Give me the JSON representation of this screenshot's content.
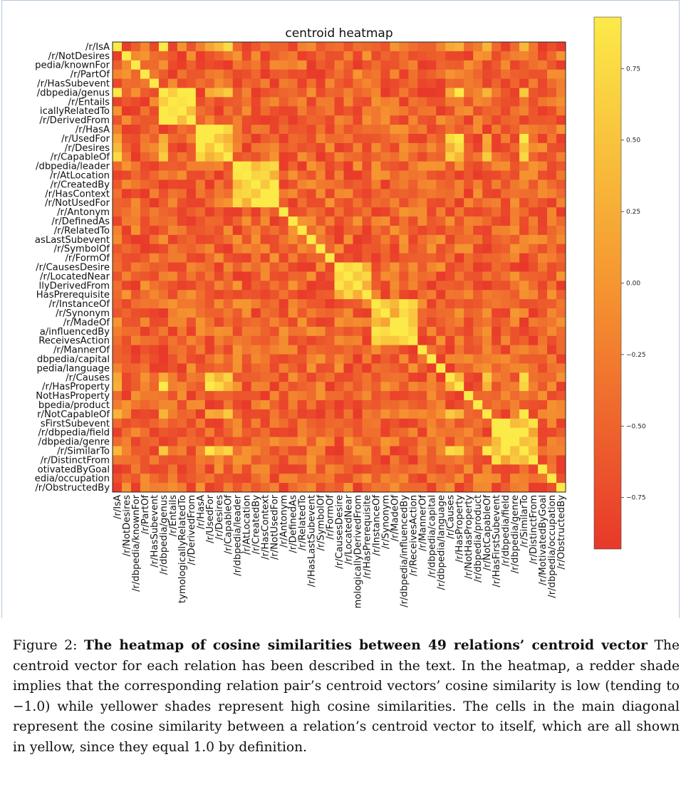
{
  "chart_data": {
    "type": "heatmap",
    "title": "centroid heatmap",
    "labels": [
      "/r/IsA",
      "/r/NotDesires",
      "/r/dbpedia/knownFor",
      "/r/PartOf",
      "/r/HasSubevent",
      "/r/dbpedia/genus",
      "/r/Entails",
      "/r/EtymologicallyRelatedTo",
      "/r/DerivedFrom",
      "/r/HasA",
      "/r/UsedFor",
      "/r/Desires",
      "/r/CapableOf",
      "/r/dbpedia/leader",
      "/r/AtLocation",
      "/r/CreatedBy",
      "/r/HasContext",
      "/r/NotUsedFor",
      "/r/Antonym",
      "/r/DefinedAs",
      "/r/RelatedTo",
      "/r/HasLastSubevent",
      "/r/SymbolOf",
      "/r/FormOf",
      "/r/CausesDesire",
      "/r/LocatedNear",
      "/r/EtymologicallyDerivedFrom",
      "/r/HasPrerequisite",
      "/r/InstanceOf",
      "/r/Synonym",
      "/r/MadeOf",
      "/r/dbpedia/influencedBy",
      "/r/ReceivesAction",
      "/r/MannerOf",
      "/r/dbpedia/capital",
      "/r/dbpedia/language",
      "/r/Causes",
      "/r/HasProperty",
      "/r/NotHasProperty",
      "/r/dbpedia/product",
      "/r/NotCapableOf",
      "/r/HasFirstSubevent",
      "/r/dbpedia/field",
      "/r/dbpedia/genre",
      "/r/SimilarTo",
      "/r/DistinctFrom",
      "/r/MotivatedByGoal",
      "/r/dbpedia/occupation",
      "/r/ObstructedBy"
    ],
    "ytick_labels": [
      "/r/IsA",
      "/r/NotDesires",
      "pedia/knownFor",
      "/r/PartOf",
      "/r/HasSubevent",
      "/dbpedia/genus",
      "/r/Entails",
      "icallyRelatedTo",
      "/r/DerivedFrom",
      "/r/HasA",
      "/r/UsedFor",
      "/r/Desires",
      "/r/CapableOf",
      "/dbpedia/leader",
      "/r/AtLocation",
      "/r/CreatedBy",
      "/r/HasContext",
      "/r/NotUsedFor",
      "/r/Antonym",
      "/r/DefinedAs",
      "/r/RelatedTo",
      "asLastSubevent",
      "/r/SymbolOf",
      "/r/FormOf",
      "/r/CausesDesire",
      "/r/LocatedNear",
      "llyDerivedFrom",
      "HasPrerequisite",
      "/r/InstanceOf",
      "/r/Synonym",
      "/r/MadeOf",
      "a/influencedBy",
      "ReceivesAction",
      "/r/MannerOf",
      "dbpedia/capital",
      "pedia/language",
      "/r/Causes",
      "/r/HasProperty",
      "NotHasProperty",
      "bpedia/product",
      "r/NotCapableOf",
      "sFirstSubevent",
      "/r/dbpedia/field",
      "/dbpedia/genre",
      "/r/SimilarTo",
      "/r/DistinctFrom",
      "otivatedByGoal",
      "edia/occupation",
      "/r/ObstructedBy"
    ],
    "xtick_labels": [
      "/r/IsA",
      "/r/NotDesires",
      "/r/dbpedia/knownFor",
      "/r/PartOf",
      "/r/HasSubevent",
      "/r/dbpedia/genus",
      "/r/Entails",
      "tymologicallyRelatedTo",
      "/r/DerivedFrom",
      "/r/HasA",
      "/r/UsedFor",
      "/r/Desires",
      "/r/CapableOf",
      "/r/dbpedia/leader",
      "/r/AtLocation",
      "/r/CreatedBy",
      "/r/HasContext",
      "/r/NotUsedFor",
      "/r/Antonym",
      "/r/DefinedAs",
      "/r/RelatedTo",
      "/r/HasLastSubevent",
      "/r/SymbolOf",
      "/r/FormOf",
      "/r/CausesDesire",
      "/r/LocatedNear",
      "mologicallyDerivedFrom",
      "/r/HasPrerequisite",
      "/r/InstanceOf",
      "/r/Synonym",
      "/r/MadeOf",
      "/r/dbpedia/influencedBy",
      "/r/ReceivesAction",
      "/r/MannerOf",
      "/r/dbpedia/capital",
      "/r/dbpedia/language",
      "/r/Causes",
      "/r/HasProperty",
      "/r/NotHasProperty",
      "/r/dbpedia/product",
      "/r/NotCapableOf",
      "/r/HasFirstSubevent",
      "/r/dbpedia/field",
      "/r/dbpedia/genre",
      "/r/SimilarTo",
      "/r/DistinctFrom",
      "/r/MotivatedByGoal",
      "/r/dbpedia/occupation",
      "/r/ObstructedBy"
    ],
    "clusters": {
      "high_similarity_groups": [
        [
          0,
          5,
          10,
          11,
          12,
          36,
          37,
          40,
          44
        ],
        [
          9,
          10,
          11,
          12
        ],
        [
          5,
          6,
          7,
          8
        ],
        [
          24,
          25,
          26,
          27
        ],
        [
          41,
          42,
          43,
          44,
          45
        ],
        [
          13,
          14,
          15,
          16,
          17
        ],
        [
          28,
          29,
          30,
          31,
          32
        ]
      ]
    },
    "diagonal_value": 1.0,
    "value_range": [
      -0.9,
      0.9
    ],
    "colormap": "autumn",
    "colorbar": {
      "ticks": [
        0.75,
        0.5,
        0.25,
        0.0,
        -0.25,
        -0.5,
        -0.75
      ],
      "tick_labels": [
        "0.75",
        "0.50",
        "0.25",
        "0.00",
        "−0.25",
        "−0.50",
        "−0.75"
      ]
    },
    "colors": {
      "low": "#e8382a",
      "mid": "#f59630",
      "high": "#fcea48"
    }
  },
  "caption": {
    "label": "Figure 2:",
    "bold_title": "The heatmap of cosine similarities between 49 relations’ centroid vector",
    "body": "The centroid vector for each relation has been described in the text. In the heatmap, a redder shade implies that the corresponding relation pair’s centroid vectors’ cosine similarity is low (tending to −1.0) while yellower shades represent high cosine similarities. The cells in the main diagonal represent the cosine similarity between a relation’s centroid vector to itself, which are all shown in yellow, since they equal 1.0 by definition."
  }
}
